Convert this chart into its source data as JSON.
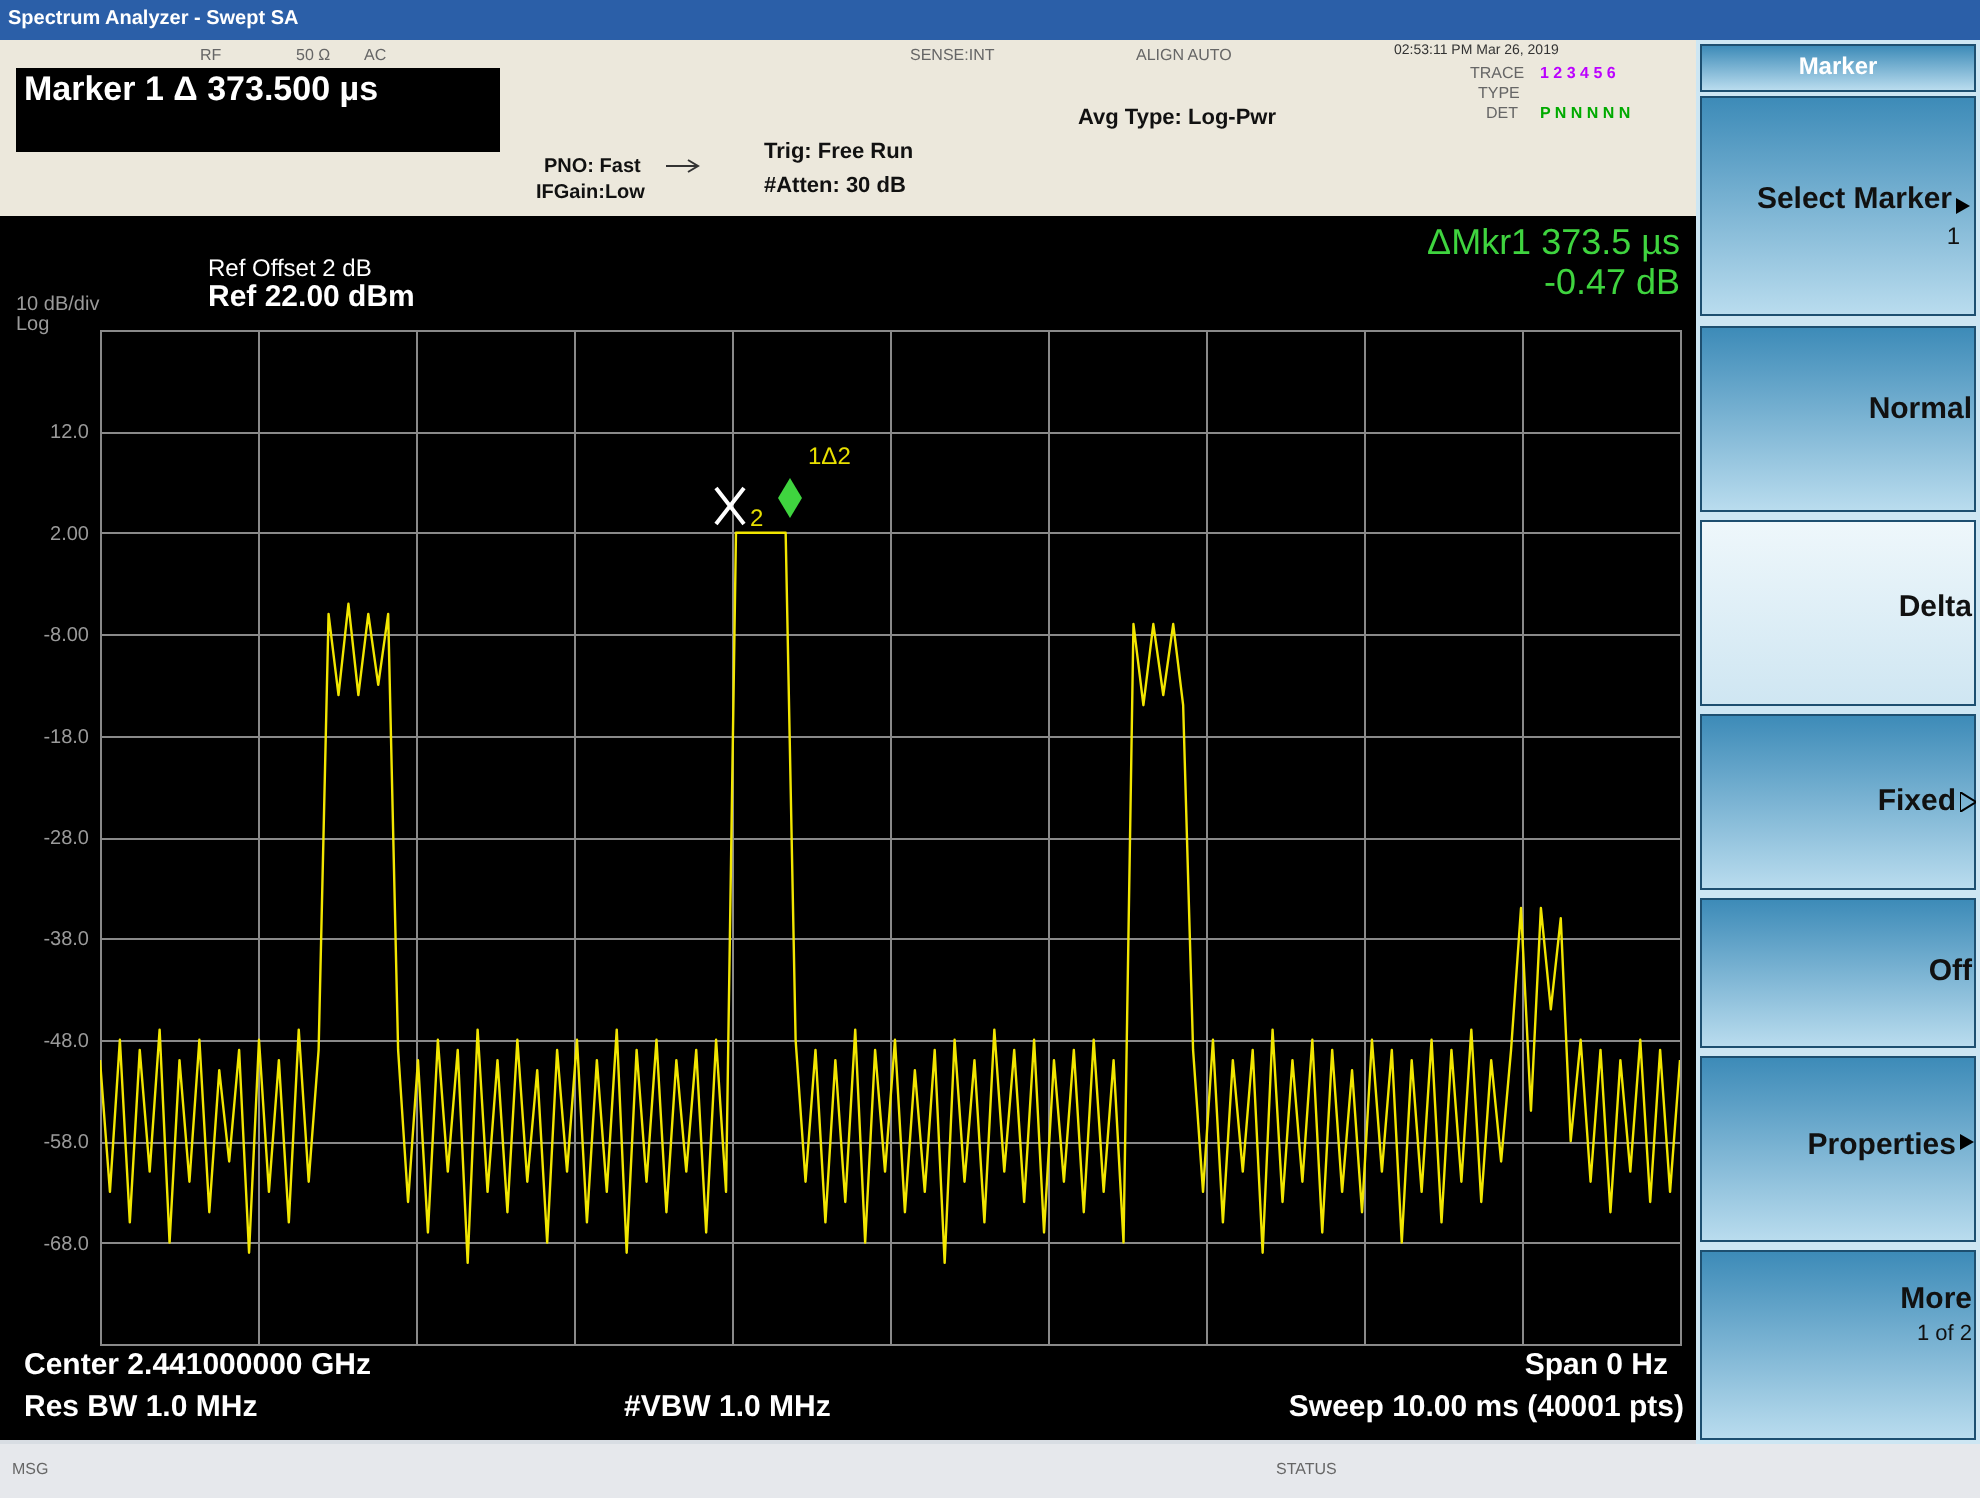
{
  "chart_data": {
    "type": "line",
    "title": "Marker 1 Δ 373.500 µs",
    "categories": [
      null,
      null,
      null,
      null,
      null,
      null,
      null,
      null,
      null,
      null,
      null,
      null,
      null,
      null,
      null,
      null,
      null,
      null,
      null,
      null,
      null,
      null,
      null,
      null,
      null,
      null,
      null,
      null,
      null,
      null,
      null,
      null,
      null,
      null,
      null,
      null,
      null,
      null,
      null,
      null,
      null,
      null,
      null,
      null,
      null,
      null,
      null,
      null,
      null,
      null,
      null,
      null,
      null,
      null,
      null,
      null,
      null,
      null,
      null,
      null,
      null,
      null,
      null,
      null,
      null,
      null,
      null,
      null,
      null,
      null,
      null,
      null,
      null,
      null,
      null,
      null,
      null,
      null,
      null,
      null,
      null,
      null,
      null,
      null,
      null,
      null,
      null,
      null,
      null,
      null,
      null,
      null,
      null,
      null,
      null,
      null,
      null,
      null,
      null,
      null,
      null,
      null,
      null,
      null,
      null,
      null,
      null,
      null,
      null,
      null,
      null,
      null,
      null,
      null,
      null,
      null,
      null,
      null,
      null,
      null,
      null,
      null,
      null,
      null,
      null,
      null,
      null,
      null,
      null,
      null,
      null,
      null,
      null,
      null,
      null,
      null,
      null,
      null,
      null,
      null,
      null,
      null,
      null,
      null,
      null,
      null,
      null,
      null,
      null,
      null,
      null,
      null,
      null,
      null,
      null,
      null,
      null,
      null,
      null,
      null
    ],
    "series": [
      {
        "color": "#f2e600",
        "values": [
          -50,
          -63,
          -48,
          -66,
          -49,
          -61,
          -47,
          -68,
          -50,
          -62,
          -48,
          -65,
          -51,
          -60,
          -49,
          -69,
          -48,
          -63,
          -50,
          -66,
          -47,
          -62,
          -49,
          -6,
          -14,
          -5,
          -14,
          -6,
          -13,
          -6,
          -49,
          -64,
          -50,
          -67,
          -48,
          -61,
          -49,
          -70,
          -47,
          -63,
          -50,
          -65,
          -48,
          -62,
          -51,
          -68,
          -49,
          -61,
          -48,
          -66,
          -50,
          -63,
          -47,
          -69,
          -49,
          -62,
          -48,
          -65,
          -50,
          -61,
          -49,
          -67,
          -48,
          -63,
          2,
          2,
          2,
          2,
          2,
          2,
          -48,
          -62,
          -49,
          -66,
          -50,
          -64,
          -47,
          -68,
          -49,
          -61,
          -48,
          -65,
          -51,
          -63,
          -49,
          -70,
          -48,
          -62,
          -50,
          -66,
          -47,
          -61,
          -49,
          -64,
          -48,
          -67,
          -50,
          -62,
          -49,
          -65,
          -48,
          -63,
          -50,
          -68,
          -7,
          -15,
          -7,
          -14,
          -7,
          -15,
          -49,
          -63,
          -48,
          -66,
          -50,
          -61,
          -49,
          -69,
          -47,
          -64,
          -50,
          -62,
          -48,
          -67,
          -49,
          -63,
          -51,
          -65,
          -48,
          -61,
          -49,
          -68,
          -50,
          -63,
          -48,
          -66,
          -49,
          -62,
          -47,
          -64,
          -50,
          -60,
          -49,
          -35,
          -55,
          -35,
          -45,
          -36,
          -58,
          -48,
          -62,
          -49,
          -65,
          -50,
          -61,
          -48,
          -64,
          -49,
          -63,
          -50
        ]
      }
    ],
    "ylim": [
      -78,
      22
    ],
    "yticks": [
      {
        "value": 22,
        "label": null
      },
      {
        "value": 12,
        "label": "12.0"
      },
      {
        "value": 2,
        "label": "2.00"
      },
      {
        "value": -8,
        "label": "-8.00"
      },
      {
        "value": -18,
        "label": "-18.0"
      },
      {
        "value": -28,
        "label": "-28.0"
      },
      {
        "value": -38,
        "label": "-38.0"
      },
      {
        "value": -48,
        "label": "-48.0"
      },
      {
        "value": -58,
        "label": "-58.0"
      },
      {
        "value": -68,
        "label": "-68.0"
      },
      {
        "value": -78,
        "label": null
      }
    ],
    "grid": true,
    "tick_labels": "y",
    "marker": "none",
    "line_style": "solid",
    "annotations": [
      "Spectrum Analyzer - Swept SA",
      "RF",
      "50 Ω",
      "AC",
      "SENSE:INT",
      "ALIGN AUTO",
      "02:53:11 PM Mar 26, 2019",
      "PNO: Fast",
      "IFGain:Low",
      "Trig: Free Run",
      "#Atten: 30 dB",
      "Avg Type: Log-Pwr",
      "TRACE",
      "1 2 3 4 5 6",
      "TYPE",
      "DET",
      "P N N N N N",
      "Ref Offset 2 dB",
      "Ref 22.00 dBm",
      "10 dB/div",
      "Log",
      "ΔMkr1 373.5 µs",
      "-0.47 dB",
      "Center 2.441000000 GHz",
      "Res BW 1.0 MHz",
      "#VBW 1.0 MHz",
      "Span 0 Hz",
      "Sweep 10.00 ms (40001 pts)",
      "MSG",
      "STATUS",
      "Marker",
      "Select Marker",
      "1",
      "Normal",
      "Delta",
      "Fixed",
      "Off",
      "Properties",
      "More",
      "1 of 2",
      "1Δ2",
      "2"
    ]
  }
}
